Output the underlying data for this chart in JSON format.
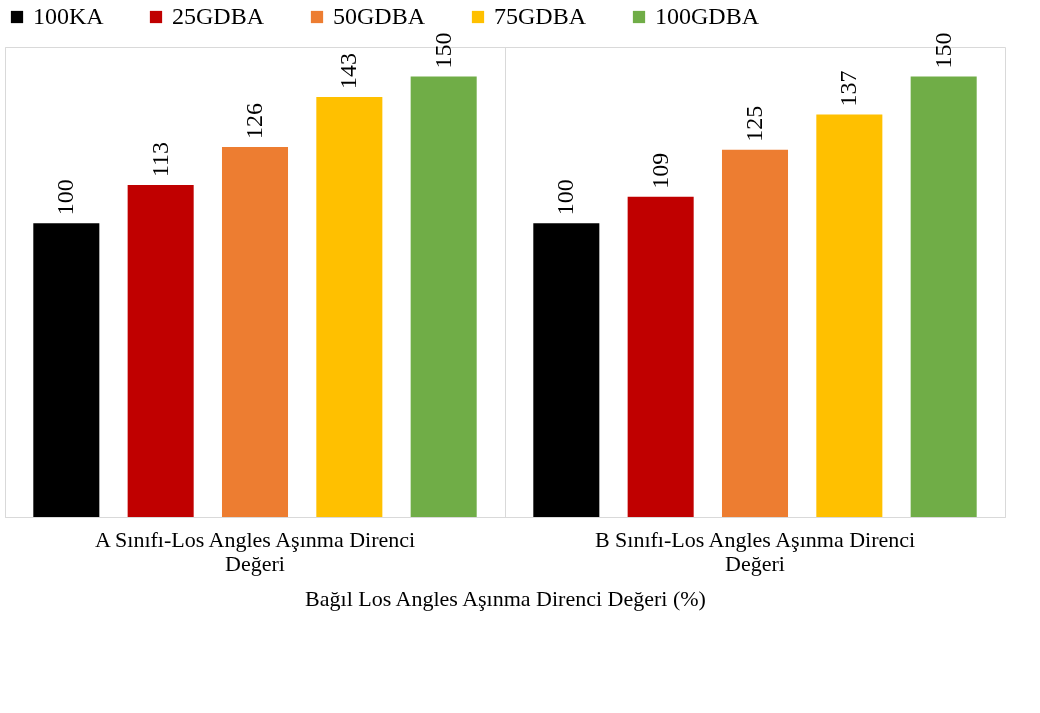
{
  "chart_data": {
    "type": "bar",
    "xlabel": "Bağıl Los Angles Aşınma Direnci Değeri (%)",
    "categories": [
      "A Sınıfı-Los Angles Aşınma Direnci Değeri",
      "B Sınıfı-Los Angles Aşınma Direnci Değeri"
    ],
    "series": [
      {
        "name": "100KA",
        "color": "#000000",
        "values": [
          100,
          100
        ]
      },
      {
        "name": "25GDBA",
        "color": "#c00000",
        "values": [
          113,
          109
        ]
      },
      {
        "name": "50GDBA",
        "color": "#ed7d31",
        "values": [
          126,
          125
        ]
      },
      {
        "name": "75GDBA",
        "color": "#ffc000",
        "values": [
          143,
          137
        ]
      },
      {
        "name": "100GDBA",
        "color": "#70ad47",
        "values": [
          150,
          150
        ]
      }
    ],
    "ylim": [
      0,
      160
    ],
    "data_labels": true,
    "legend": "top",
    "grid": "x",
    "tick_labels": "x"
  }
}
